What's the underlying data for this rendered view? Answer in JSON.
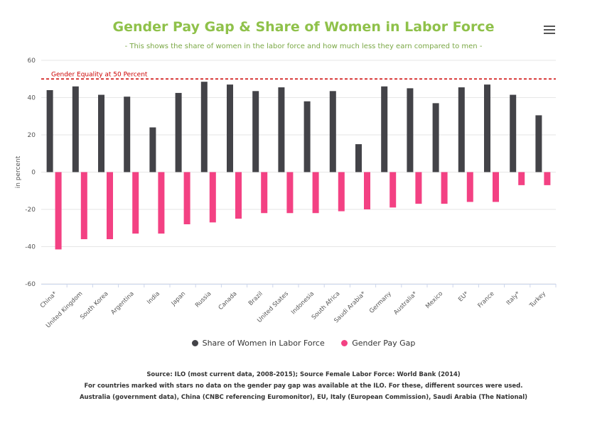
{
  "chart_data": {
    "type": "bar",
    "title": "Gender Pay Gap & Share of Women in Labor Force",
    "subtitle": "- This shows the share of women in the labor force and how much less they earn compared to men -",
    "ylabel": "in percent",
    "ylim": [
      -60,
      60
    ],
    "yticks": [
      60,
      40,
      20,
      0,
      -20,
      -40,
      -60
    ],
    "categories": [
      "China*",
      "United Kingdom",
      "South Korea",
      "Argentina",
      "India",
      "Japan",
      "Russia",
      "Canada",
      "Brazil",
      "United States",
      "Indonesia",
      "South Africa",
      "Saudi Arabia*",
      "Germany",
      "Australia*",
      "Mexico",
      "EU*",
      "France",
      "Italy*",
      "Turkey"
    ],
    "series": [
      {
        "name": "Share of Women in Labor Force",
        "color": "#434348",
        "values": [
          44,
          46,
          41.5,
          40.5,
          24,
          42.5,
          48.5,
          47,
          43.5,
          45.5,
          38,
          43.5,
          15,
          46,
          45,
          37,
          45.5,
          47,
          41.5,
          30.5
        ]
      },
      {
        "name": "Gender Pay Gap",
        "color": "#f34183",
        "values": [
          -41.5,
          -36,
          -36,
          -33,
          -33,
          -28,
          -27,
          -25,
          -22,
          -22,
          -22,
          -21,
          -20,
          -19,
          -17,
          -17,
          -16,
          -16,
          -7,
          -7
        ]
      }
    ],
    "plot_lines": [
      {
        "value": 50,
        "label": "Gender Equality at 50 Percent",
        "color": "#cc0000"
      }
    ],
    "legend_position": "bottom-center",
    "grid": true
  },
  "source_lines": [
    "Source: ILO (most current data, 2008-2015); Source Female Labor Force: World Bank (2014)",
    "For countries marked with stars no data on the gender pay gap was available at the ILO. For these, different sources were used.",
    "Australia (government data), China (CNBC referencing Euromonitor), EU, Italy (European Commission), Saudi Arabia (The National)"
  ]
}
